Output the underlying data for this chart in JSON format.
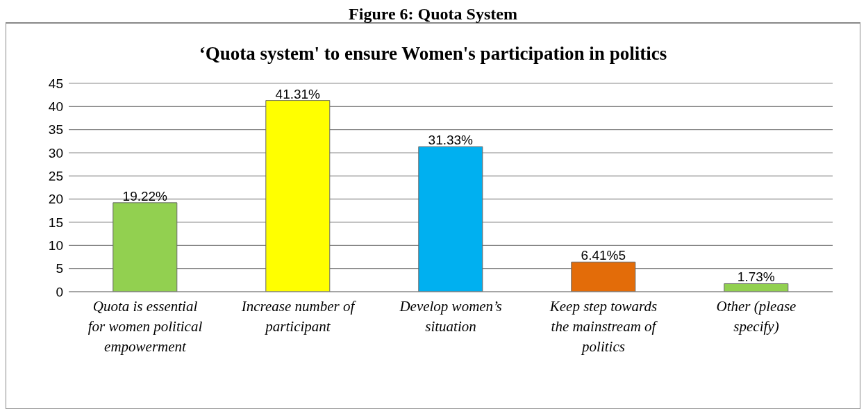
{
  "chart_data": {
    "type": "bar",
    "title": "Figure 6: Quota System",
    "subtitle": "‘Quota system' to ensure Women's participation in politics",
    "categories": [
      "Quota is essential for women political empowerment",
      "Increase number of participant",
      "Develop women’s situation",
      "Keep step towards the mainstream of politics",
      "Other (please specify)"
    ],
    "values": [
      19.22,
      41.31,
      31.33,
      6.41,
      1.73
    ],
    "colors": [
      "#92d050",
      "#ffff00",
      "#00b0f0",
      "#e36c09",
      "#92d050"
    ],
    "value_labels": [
      "19.22%",
      "41.31%",
      "31.33%",
      "6.41%5",
      "1.73%"
    ],
    "ylim": [
      0,
      45
    ],
    "yticks": [
      0,
      5,
      10,
      15,
      20,
      25,
      30,
      35,
      40,
      45
    ],
    "grid": "y",
    "legend": false
  }
}
